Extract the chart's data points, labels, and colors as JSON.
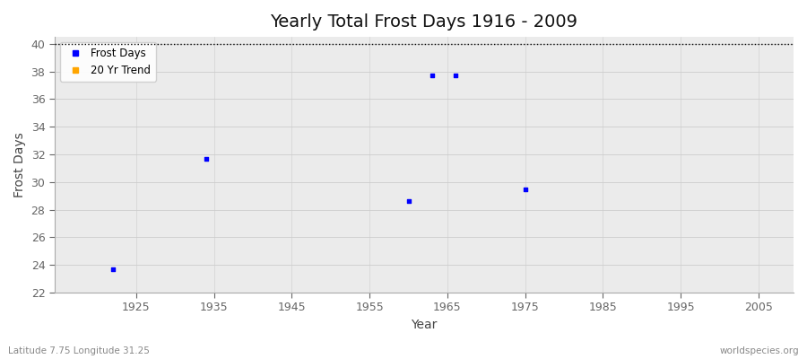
{
  "title": "Yearly Total Frost Days 1916 - 2009",
  "xlabel": "Year",
  "ylabel": "Frost Days",
  "xlim": [
    1914.5,
    2009.5
  ],
  "ylim": [
    22,
    40.5
  ],
  "yticks": [
    22,
    24,
    26,
    28,
    30,
    32,
    34,
    36,
    38,
    40
  ],
  "xticks": [
    1925,
    1935,
    1945,
    1955,
    1965,
    1975,
    1985,
    1995,
    2005
  ],
  "frost_years": [
    1922,
    1934,
    1960,
    1963,
    1966,
    1975
  ],
  "frost_values": [
    23.7,
    31.7,
    28.6,
    37.7,
    37.7,
    29.5
  ],
  "dot_color": "#0000ff",
  "trend_color": "#ffa500",
  "background_color": "#ffffff",
  "plot_bg_color": "#ebebeb",
  "dashed_line_y": 40,
  "bottom_left_text": "Latitude 7.75 Longitude 31.25",
  "bottom_right_text": "worldspecies.org",
  "title_fontsize": 14,
  "legend_entries": [
    "Frost Days",
    "20 Yr Trend"
  ]
}
